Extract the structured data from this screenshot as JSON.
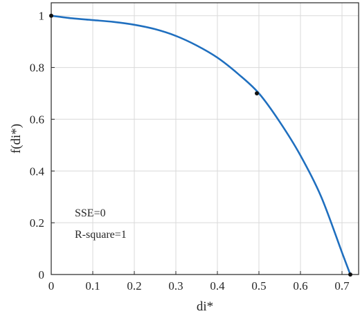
{
  "chart_data": {
    "type": "line",
    "title": "",
    "xlabel": "di*",
    "ylabel": "f(di*)",
    "xlim": [
      0,
      0.74
    ],
    "ylim": [
      0,
      1.05
    ],
    "x_ticks": [
      0,
      0.1,
      0.2,
      0.3,
      0.4,
      0.5,
      0.6,
      0.7
    ],
    "x_tick_labels": [
      "0",
      "0.1",
      "0.2",
      "0.3",
      "0.4",
      "0.5",
      "0.6",
      "0.7"
    ],
    "y_ticks": [
      0,
      0.2,
      0.4,
      0.6,
      0.8,
      1
    ],
    "y_tick_labels": [
      "0",
      "0.2",
      "0.4",
      "0.6",
      "0.8",
      "1"
    ],
    "grid": true,
    "series": [
      {
        "color": "#1f6fbf",
        "x": [
          0,
          0.05,
          0.1,
          0.15,
          0.2,
          0.25,
          0.3,
          0.35,
          0.4,
          0.45,
          0.5,
          0.55,
          0.6,
          0.65,
          0.7,
          0.72
        ],
        "y": [
          1.0,
          0.99,
          0.983,
          0.976,
          0.965,
          0.948,
          0.922,
          0.885,
          0.838,
          0.775,
          0.7,
          0.59,
          0.46,
          0.3,
          0.085,
          0.0
        ]
      }
    ],
    "points": {
      "x": [
        0,
        0.495,
        0.72
      ],
      "y": [
        1.0,
        0.7,
        0.0
      ]
    },
    "annotations": [
      "SSE=0",
      "R-square=1"
    ]
  }
}
